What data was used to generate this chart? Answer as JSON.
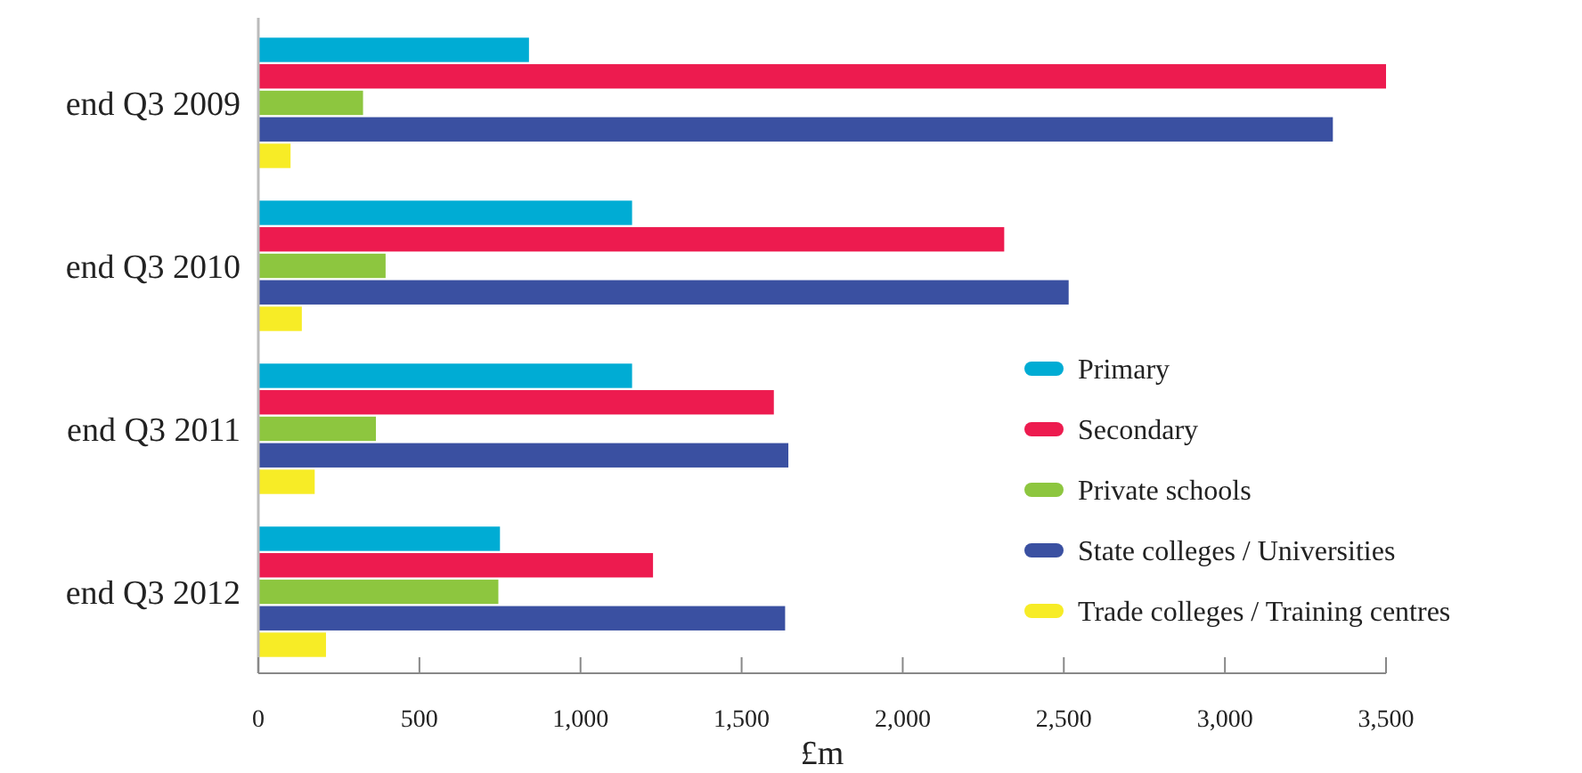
{
  "chart_data": {
    "type": "bar",
    "orientation": "horizontal",
    "xlabel": "£m",
    "categories": [
      "end Q3 2009",
      "end Q3 2010",
      "end Q3 2011",
      "end Q3 2012"
    ],
    "series": [
      {
        "name": "Primary",
        "color": "#00acd4",
        "values": [
          840,
          1160,
          1160,
          750
        ]
      },
      {
        "name": "Secondary",
        "color": "#ed1b4f",
        "values": [
          3500,
          2315,
          1600,
          1225
        ]
      },
      {
        "name": "Private schools",
        "color": "#8dc63f",
        "values": [
          325,
          395,
          365,
          745
        ]
      },
      {
        "name": "State colleges / Universities",
        "color": "#3a50a1",
        "values": [
          3335,
          2515,
          1645,
          1635
        ]
      },
      {
        "name": "Trade colleges / Training centres",
        "color": "#f7ec26",
        "values": [
          100,
          135,
          175,
          210
        ]
      }
    ],
    "xlim": [
      0,
      3500
    ],
    "xticks": [
      0,
      {
        "value": 500,
        "label": "500"
      },
      {
        "value": 1000,
        "label": "1,000"
      },
      {
        "value": 1500,
        "label": "1,500"
      },
      {
        "value": 2000,
        "label": "2,000"
      },
      {
        "value": 2500,
        "label": "2,500"
      },
      {
        "value": 3000,
        "label": "3,000"
      },
      {
        "value": 3500,
        "label": "3,500"
      }
    ],
    "grid": false,
    "legend": "right"
  }
}
